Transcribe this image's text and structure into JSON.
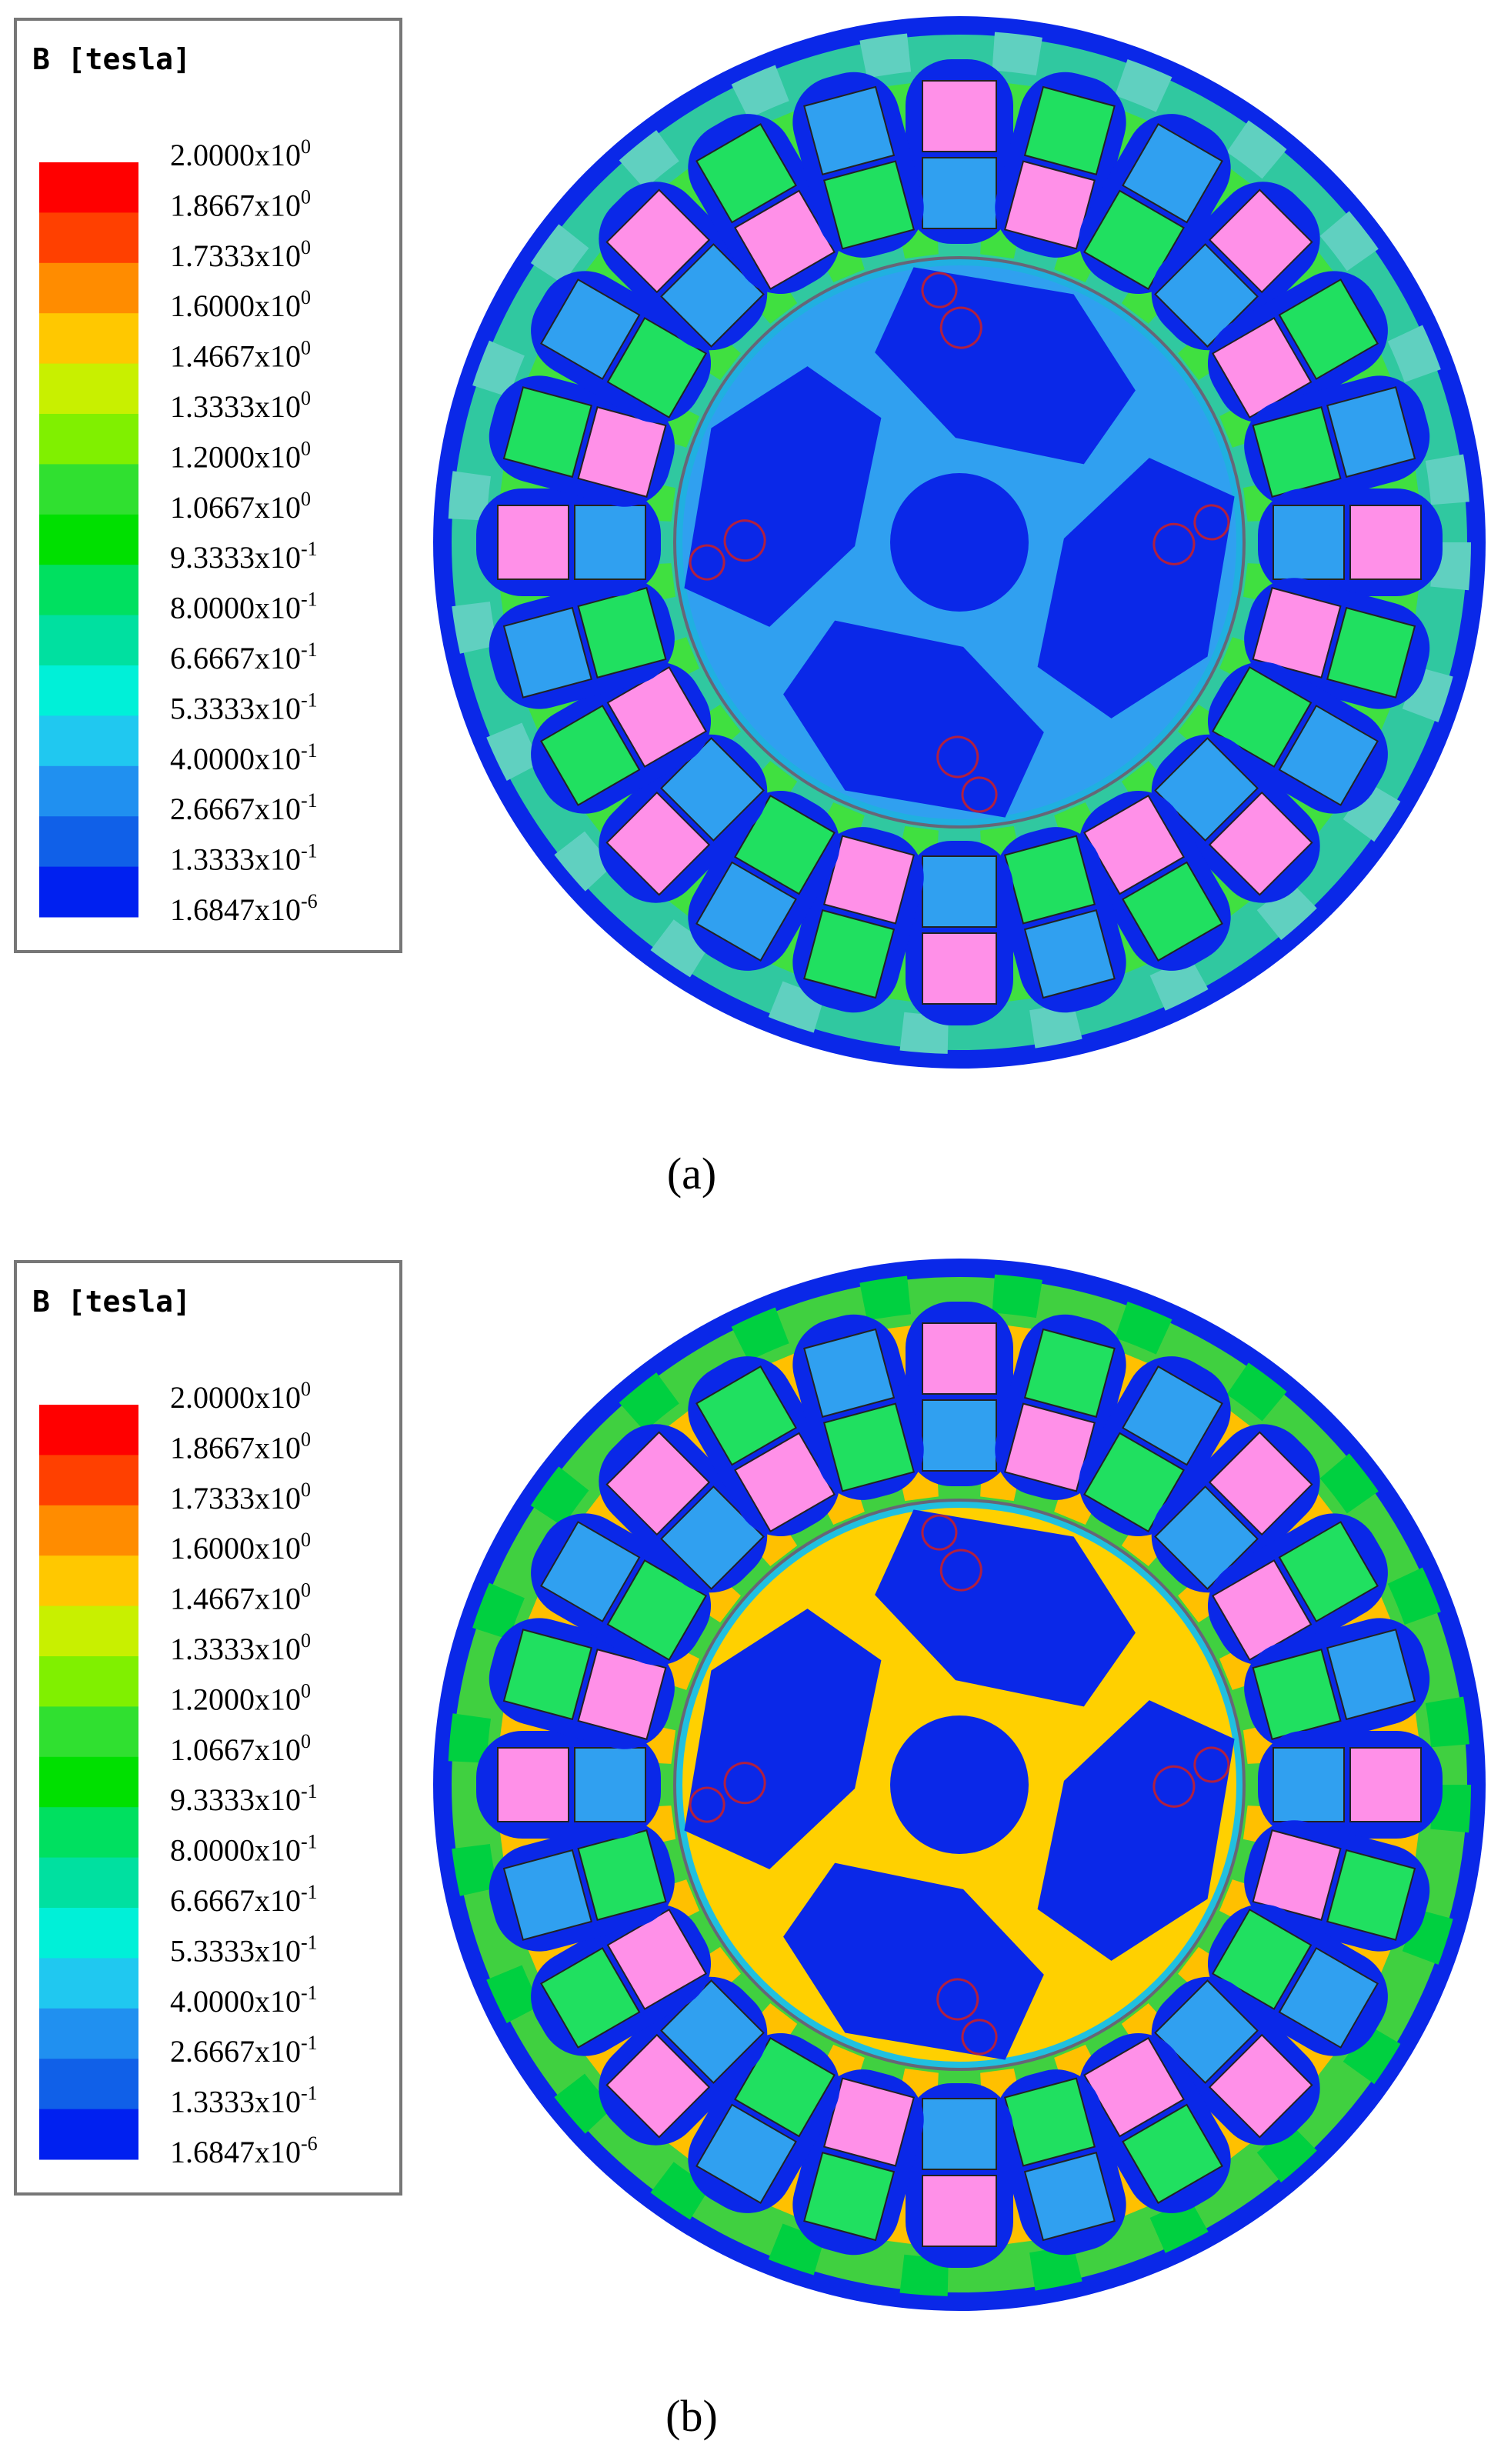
{
  "panels": [
    {
      "label": "(a)",
      "legend": {
        "title": "B [tesla]",
        "ticks": [
          {
            "base": "2.0000x10",
            "exp": "0"
          },
          {
            "base": "1.8667x10",
            "exp": "0"
          },
          {
            "base": "1.7333x10",
            "exp": "0"
          },
          {
            "base": "1.6000x10",
            "exp": "0"
          },
          {
            "base": "1.4667x10",
            "exp": "0"
          },
          {
            "base": "1.3333x10",
            "exp": "0"
          },
          {
            "base": "1.2000x10",
            "exp": "0"
          },
          {
            "base": "1.0667x10",
            "exp": "0"
          },
          {
            "base": "9.3333x10",
            "exp": "-1"
          },
          {
            "base": "8.0000x10",
            "exp": "-1"
          },
          {
            "base": "6.6667x10",
            "exp": "-1"
          },
          {
            "base": "5.3333x10",
            "exp": "-1"
          },
          {
            "base": "4.0000x10",
            "exp": "-1"
          },
          {
            "base": "2.6667x10",
            "exp": "-1"
          },
          {
            "base": "1.3333x10",
            "exp": "-1"
          },
          {
            "base": "1.6847x10",
            "exp": "-6"
          }
        ]
      }
    },
    {
      "label": "(b)",
      "legend": {
        "title": "B [tesla]",
        "ticks": [
          {
            "base": "2.0000x10",
            "exp": "0"
          },
          {
            "base": "1.8667x10",
            "exp": "0"
          },
          {
            "base": "1.7333x10",
            "exp": "0"
          },
          {
            "base": "1.6000x10",
            "exp": "0"
          },
          {
            "base": "1.4667x10",
            "exp": "0"
          },
          {
            "base": "1.3333x10",
            "exp": "0"
          },
          {
            "base": "1.2000x10",
            "exp": "0"
          },
          {
            "base": "1.0667x10",
            "exp": "0"
          },
          {
            "base": "9.3333x10",
            "exp": "-1"
          },
          {
            "base": "8.0000x10",
            "exp": "-1"
          },
          {
            "base": "6.6667x10",
            "exp": "-1"
          },
          {
            "base": "5.3333x10",
            "exp": "-1"
          },
          {
            "base": "4.0000x10",
            "exp": "-1"
          },
          {
            "base": "2.6667x10",
            "exp": "-1"
          },
          {
            "base": "1.3333x10",
            "exp": "-1"
          },
          {
            "base": "1.6847x10",
            "exp": "-6"
          }
        ]
      }
    }
  ]
}
